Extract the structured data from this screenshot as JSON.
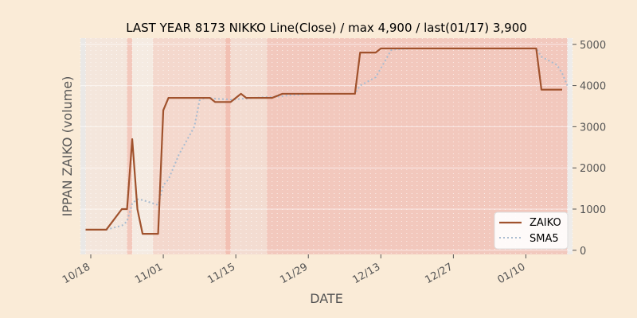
{
  "chart_data": {
    "type": "line",
    "title": "LAST YEAR 8173 NIKKO Line(Close) / max 4,900 / last(01/17) 3,900",
    "xlabel": "DATE",
    "ylabel": "IPPAN ZAIKO (volume)",
    "ylim": [
      -100,
      5150
    ],
    "yticks": [
      0,
      1000,
      2000,
      3000,
      4000,
      5000
    ],
    "ytick_labels": [
      "0",
      "1000",
      "2000",
      "3000",
      "4000",
      "5000"
    ],
    "y_axis_side": "right",
    "xticks": [
      {
        "date": "2022-10-18",
        "label": "10/18"
      },
      {
        "date": "2022-11-01",
        "label": "11/01"
      },
      {
        "date": "2022-11-15",
        "label": "11/15"
      },
      {
        "date": "2022-11-29",
        "label": "11/29"
      },
      {
        "date": "2022-12-13",
        "label": "12/13"
      },
      {
        "date": "2022-12-27",
        "label": "12/27"
      },
      {
        "date": "2023-01-10",
        "label": "01/10"
      }
    ],
    "xlim": [
      "2022-10-16",
      "2023-01-19"
    ],
    "grid": true,
    "legend_position": "lower-right",
    "series": [
      {
        "name": "ZAIKO",
        "color": "#a0522d",
        "style": "solid",
        "points": [
          [
            "2022-10-17",
            500
          ],
          [
            "2022-10-18",
            500
          ],
          [
            "2022-10-19",
            500
          ],
          [
            "2022-10-20",
            500
          ],
          [
            "2022-10-21",
            500
          ],
          [
            "2022-10-24",
            1000
          ],
          [
            "2022-10-25",
            1000
          ],
          [
            "2022-10-26",
            2700
          ],
          [
            "2022-10-27",
            1000
          ],
          [
            "2022-10-28",
            400
          ],
          [
            "2022-10-31",
            400
          ],
          [
            "2022-11-01",
            3400
          ],
          [
            "2022-11-02",
            3700
          ],
          [
            "2022-11-04",
            3700
          ],
          [
            "2022-11-07",
            3700
          ],
          [
            "2022-11-08",
            3700
          ],
          [
            "2022-11-09",
            3700
          ],
          [
            "2022-11-10",
            3700
          ],
          [
            "2022-11-11",
            3600
          ],
          [
            "2022-11-14",
            3600
          ],
          [
            "2022-11-15",
            3700
          ],
          [
            "2022-11-16",
            3800
          ],
          [
            "2022-11-17",
            3700
          ],
          [
            "2022-11-18",
            3700
          ],
          [
            "2022-11-21",
            3700
          ],
          [
            "2022-11-22",
            3700
          ],
          [
            "2022-11-24",
            3800
          ],
          [
            "2022-11-25",
            3800
          ],
          [
            "2022-11-28",
            3800
          ],
          [
            "2022-11-29",
            3800
          ],
          [
            "2022-11-30",
            3800
          ],
          [
            "2022-12-01",
            3800
          ],
          [
            "2022-12-02",
            3800
          ],
          [
            "2022-12-05",
            3800
          ],
          [
            "2022-12-06",
            3800
          ],
          [
            "2022-12-07",
            3800
          ],
          [
            "2022-12-08",
            3800
          ],
          [
            "2022-12-09",
            4800
          ],
          [
            "2022-12-12",
            4800
          ],
          [
            "2022-12-13",
            4900
          ],
          [
            "2022-12-14",
            4900
          ],
          [
            "2022-12-15",
            4900
          ],
          [
            "2022-12-16",
            4900
          ],
          [
            "2022-12-19",
            4900
          ],
          [
            "2022-12-20",
            4900
          ],
          [
            "2022-12-21",
            4900
          ],
          [
            "2022-12-22",
            4900
          ],
          [
            "2022-12-23",
            4900
          ],
          [
            "2022-12-26",
            4900
          ],
          [
            "2022-12-27",
            4900
          ],
          [
            "2022-12-28",
            4900
          ],
          [
            "2022-12-29",
            4900
          ],
          [
            "2022-12-30",
            4900
          ],
          [
            "2023-01-04",
            4900
          ],
          [
            "2023-01-05",
            4900
          ],
          [
            "2023-01-06",
            4900
          ],
          [
            "2023-01-10",
            4900
          ],
          [
            "2023-01-11",
            4900
          ],
          [
            "2023-01-12",
            4900
          ],
          [
            "2023-01-13",
            3900
          ],
          [
            "2023-01-16",
            3900
          ],
          [
            "2023-01-17",
            3900
          ]
        ]
      },
      {
        "name": "SMA5",
        "color": "#a9bcd0",
        "style": "dotted",
        "points": [
          [
            "2022-10-21",
            500
          ],
          [
            "2022-10-24",
            600
          ],
          [
            "2022-10-25",
            700
          ],
          [
            "2022-10-26",
            1140
          ],
          [
            "2022-10-27",
            1240
          ],
          [
            "2022-10-28",
            1220
          ],
          [
            "2022-10-31",
            1100
          ],
          [
            "2022-11-01",
            1580
          ],
          [
            "2022-11-02",
            1720
          ],
          [
            "2022-11-04",
            2320
          ],
          [
            "2022-11-07",
            3000
          ],
          [
            "2022-11-08",
            3640
          ],
          [
            "2022-11-09",
            3700
          ],
          [
            "2022-11-10",
            3700
          ],
          [
            "2022-11-11",
            3680
          ],
          [
            "2022-11-14",
            3660
          ],
          [
            "2022-11-15",
            3660
          ],
          [
            "2022-11-16",
            3680
          ],
          [
            "2022-11-17",
            3680
          ],
          [
            "2022-11-18",
            3700
          ],
          [
            "2022-11-21",
            3720
          ],
          [
            "2022-11-22",
            3720
          ],
          [
            "2022-11-24",
            3740
          ],
          [
            "2022-11-25",
            3760
          ],
          [
            "2022-11-28",
            3780
          ],
          [
            "2022-11-29",
            3800
          ],
          [
            "2022-11-30",
            3800
          ],
          [
            "2022-12-01",
            3800
          ],
          [
            "2022-12-02",
            3800
          ],
          [
            "2022-12-05",
            3800
          ],
          [
            "2022-12-06",
            3800
          ],
          [
            "2022-12-07",
            3800
          ],
          [
            "2022-12-08",
            3800
          ],
          [
            "2022-12-09",
            4000
          ],
          [
            "2022-12-12",
            4200
          ],
          [
            "2022-12-13",
            4420
          ],
          [
            "2022-12-14",
            4640
          ],
          [
            "2022-12-15",
            4860
          ],
          [
            "2022-12-16",
            4880
          ],
          [
            "2022-12-19",
            4900
          ],
          [
            "2022-12-20",
            4900
          ],
          [
            "2022-12-21",
            4900
          ],
          [
            "2022-12-22",
            4900
          ],
          [
            "2022-12-23",
            4900
          ],
          [
            "2022-12-26",
            4900
          ],
          [
            "2022-12-27",
            4900
          ],
          [
            "2022-12-28",
            4900
          ],
          [
            "2022-12-29",
            4900
          ],
          [
            "2022-12-30",
            4900
          ],
          [
            "2023-01-04",
            4900
          ],
          [
            "2023-01-05",
            4900
          ],
          [
            "2023-01-06",
            4900
          ],
          [
            "2023-01-10",
            4900
          ],
          [
            "2023-01-11",
            4900
          ],
          [
            "2023-01-12",
            4900
          ],
          [
            "2023-01-13",
            4700
          ],
          [
            "2023-01-16",
            4500
          ],
          [
            "2023-01-17",
            4300
          ],
          [
            "2023-01-18",
            4000
          ]
        ]
      }
    ],
    "background_bands": [
      {
        "start": "2022-10-16",
        "end": "2022-10-17",
        "color": "#e8e8e8",
        "opacity": 0.9
      },
      {
        "start": "2022-10-17",
        "end": "2022-10-25",
        "color": "#f4e6dc",
        "opacity": 1.0
      },
      {
        "start": "2022-10-25",
        "end": "2022-10-26",
        "color": "#f3c9bd",
        "opacity": 1.0
      },
      {
        "start": "2022-10-26",
        "end": "2022-10-30",
        "color": "#f5ebe2",
        "opacity": 1.0
      },
      {
        "start": "2022-10-30",
        "end": "2022-11-13",
        "color": "#f4d8cd",
        "opacity": 1.0
      },
      {
        "start": "2022-11-13",
        "end": "2022-11-14",
        "color": "#f2c0b3",
        "opacity": 1.0
      },
      {
        "start": "2022-11-14",
        "end": "2022-11-21",
        "color": "#f3dcd1",
        "opacity": 1.0
      },
      {
        "start": "2022-11-21",
        "end": "2023-01-18",
        "color": "#f2c8bd",
        "opacity": 1.0
      },
      {
        "start": "2023-01-18",
        "end": "2023-01-19",
        "color": "#ececec",
        "opacity": 0.9
      }
    ]
  }
}
